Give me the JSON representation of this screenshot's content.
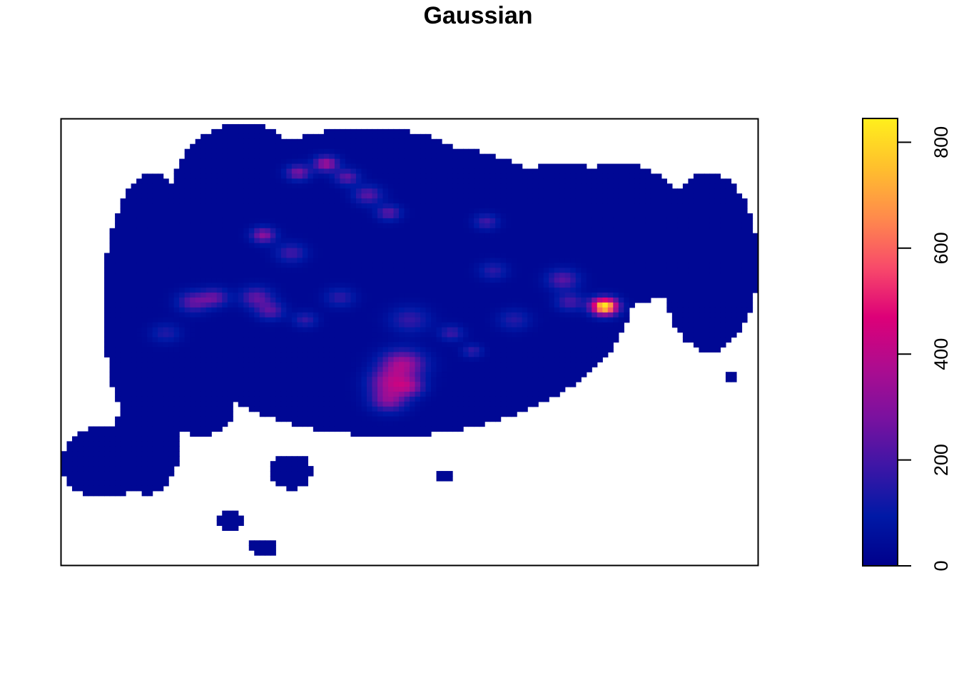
{
  "chart_data": {
    "type": "heatmap",
    "title": "Gaussian",
    "xlabel": "",
    "ylabel": "",
    "axes_shown": false,
    "legend": {
      "type": "colorbar",
      "placement": "right",
      "range": [
        0,
        845
      ],
      "ticks": [
        0,
        200,
        400,
        600,
        800
      ],
      "tick_labels": [
        "0",
        "200",
        "400",
        "600",
        "800"
      ],
      "palette": [
        "#00008B",
        "#0019A6",
        "#3D16A6",
        "#7B119F",
        "#AE0C8F",
        "#DD0078",
        "#F84A6A",
        "#FF8A4C",
        "#FFBF2D",
        "#FFEF1C"
      ]
    },
    "grid_size": [
      130,
      90
    ],
    "background_value": 30,
    "land_regions": [
      {
        "cx": 0.47,
        "cy": 0.62,
        "rx": 0.35,
        "ry": 0.33
      },
      {
        "cx": 0.44,
        "cy": 0.9,
        "rx": 0.14,
        "ry": 0.08
      },
      {
        "cx": 0.26,
        "cy": 0.84,
        "rx": 0.1,
        "ry": 0.15
      },
      {
        "cx": 0.7,
        "cy": 0.7,
        "rx": 0.12,
        "ry": 0.18
      },
      {
        "cx": 0.8,
        "cy": 0.74,
        "rx": 0.11,
        "ry": 0.16
      },
      {
        "cx": 0.13,
        "cy": 0.58,
        "rx": 0.07,
        "ry": 0.3
      },
      {
        "cx": 0.12,
        "cy": 0.27,
        "rx": 0.05,
        "ry": 0.11
      },
      {
        "cx": 0.93,
        "cy": 0.68,
        "rx": 0.07,
        "ry": 0.2
      },
      {
        "cx": 0.72,
        "cy": 0.85,
        "rx": 0.07,
        "ry": 0.05
      },
      {
        "cx": 0.2,
        "cy": 0.37,
        "rx": 0.05,
        "ry": 0.08
      },
      {
        "cx": 0.48,
        "cy": 0.37,
        "rx": 0.05,
        "ry": 0.04
      },
      {
        "cx": 0.06,
        "cy": 0.23,
        "rx": 0.06,
        "ry": 0.08
      },
      {
        "cx": 0.33,
        "cy": 0.21,
        "rx": 0.03,
        "ry": 0.04
      },
      {
        "cx": 0.24,
        "cy": 0.1,
        "rx": 0.02,
        "ry": 0.02
      },
      {
        "cx": 0.29,
        "cy": 0.04,
        "rx": 0.02,
        "ry": 0.02
      },
      {
        "cx": 0.55,
        "cy": 0.2,
        "rx": 0.01,
        "ry": 0.01
      },
      {
        "cx": 0.96,
        "cy": 0.42,
        "rx": 0.01,
        "ry": 0.01
      }
    ],
    "hotspots": [
      {
        "x": 0.78,
        "y": 0.58,
        "value": 820,
        "spread": 0.013
      },
      {
        "x": 0.49,
        "y": 0.45,
        "value": 330,
        "spread": 0.022
      },
      {
        "x": 0.47,
        "y": 0.41,
        "value": 270,
        "spread": 0.02
      },
      {
        "x": 0.47,
        "y": 0.37,
        "value": 260,
        "spread": 0.018
      },
      {
        "x": 0.5,
        "y": 0.4,
        "value": 240,
        "spread": 0.015
      },
      {
        "x": 0.38,
        "y": 0.9,
        "value": 320,
        "spread": 0.012
      },
      {
        "x": 0.34,
        "y": 0.88,
        "value": 250,
        "spread": 0.012
      },
      {
        "x": 0.41,
        "y": 0.87,
        "value": 210,
        "spread": 0.012
      },
      {
        "x": 0.44,
        "y": 0.83,
        "value": 200,
        "spread": 0.014
      },
      {
        "x": 0.47,
        "y": 0.79,
        "value": 200,
        "spread": 0.012
      },
      {
        "x": 0.29,
        "y": 0.74,
        "value": 280,
        "spread": 0.012
      },
      {
        "x": 0.33,
        "y": 0.7,
        "value": 160,
        "spread": 0.015
      },
      {
        "x": 0.19,
        "y": 0.59,
        "value": 210,
        "spread": 0.016
      },
      {
        "x": 0.22,
        "y": 0.6,
        "value": 200,
        "spread": 0.014
      },
      {
        "x": 0.28,
        "y": 0.6,
        "value": 210,
        "spread": 0.016
      },
      {
        "x": 0.3,
        "y": 0.57,
        "value": 190,
        "spread": 0.014
      },
      {
        "x": 0.72,
        "y": 0.64,
        "value": 200,
        "spread": 0.016
      },
      {
        "x": 0.73,
        "y": 0.59,
        "value": 170,
        "spread": 0.014
      },
      {
        "x": 0.61,
        "y": 0.77,
        "value": 160,
        "spread": 0.012
      },
      {
        "x": 0.56,
        "y": 0.52,
        "value": 150,
        "spread": 0.012
      },
      {
        "x": 0.59,
        "y": 0.48,
        "value": 140,
        "spread": 0.01
      },
      {
        "x": 0.35,
        "y": 0.55,
        "value": 140,
        "spread": 0.012
      },
      {
        "x": 0.62,
        "y": 0.66,
        "value": 130,
        "spread": 0.014
      },
      {
        "x": 0.4,
        "y": 0.6,
        "value": 130,
        "spread": 0.015
      },
      {
        "x": 0.5,
        "y": 0.55,
        "value": 140,
        "spread": 0.02
      },
      {
        "x": 0.65,
        "y": 0.55,
        "value": 120,
        "spread": 0.016
      },
      {
        "x": 0.15,
        "y": 0.52,
        "value": 110,
        "spread": 0.015
      }
    ]
  }
}
